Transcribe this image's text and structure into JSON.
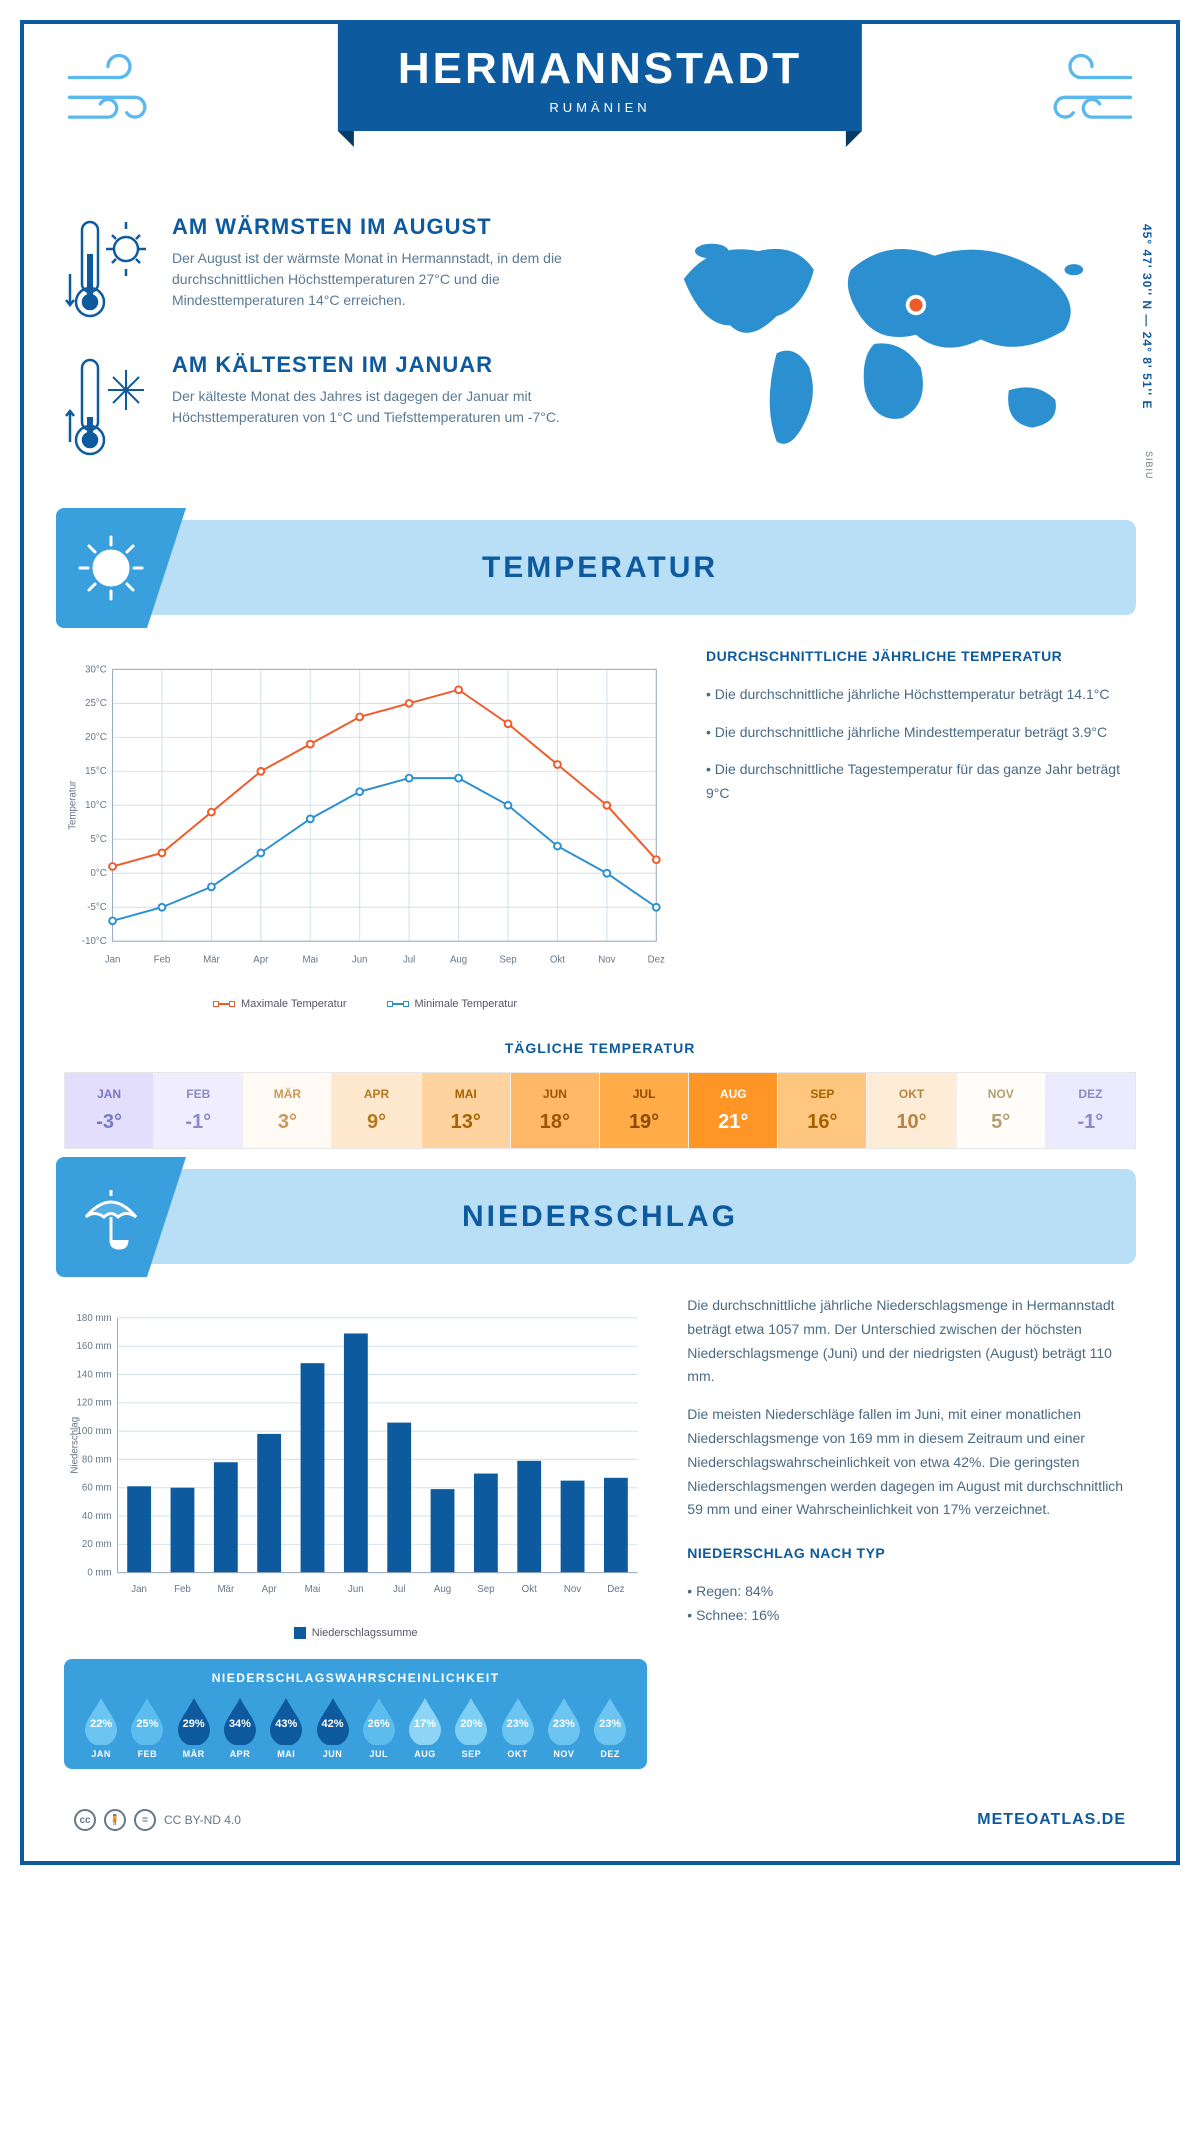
{
  "header": {
    "city": "HERMANNSTADT",
    "country": "RUMÄNIEN",
    "coords": "45° 47' 30'' N — 24° 8' 51'' E",
    "cityLatin": "SIBIU"
  },
  "facts": {
    "hot": {
      "title": "AM WÄRMSTEN IM AUGUST",
      "body": "Der August ist der wärmste Monat in Hermannstadt, in dem die durchschnittlichen Höchsttemperaturen 27°C und die Mindesttemperaturen 14°C erreichen."
    },
    "cold": {
      "title": "AM KÄLTESTEN IM JANUAR",
      "body": "Der kälteste Monat des Jahres ist dagegen der Januar mit Höchsttemperaturen von 1°C und Tiefsttemperaturen um -7°C."
    }
  },
  "sections": {
    "temperature": "TEMPERATUR",
    "precipitation": "NIEDERSCHLAG"
  },
  "tempChart": {
    "type": "line",
    "months": [
      "Jan",
      "Feb",
      "Mär",
      "Apr",
      "Mai",
      "Jun",
      "Jul",
      "Aug",
      "Sep",
      "Okt",
      "Nov",
      "Dez"
    ],
    "ylabel": "Temperatur",
    "ylim": [
      -10,
      30
    ],
    "ytick_step": 5,
    "ytick_suffix": "°C",
    "grid_color": "#cfe0ea",
    "background": "#ffffff",
    "series": {
      "max": {
        "label": "Maximale Temperatur",
        "color": "#f05a28",
        "values": [
          1,
          3,
          9,
          15,
          19,
          23,
          25,
          27,
          22,
          16,
          10,
          2
        ]
      },
      "min": {
        "label": "Minimale Temperatur",
        "color": "#2b8fd0",
        "values": [
          -7,
          -5,
          -2,
          3,
          8,
          12,
          14,
          14,
          10,
          4,
          0,
          -5
        ]
      }
    },
    "side": {
      "title": "DURCHSCHNITTLICHE JÄHRLICHE TEMPERATUR",
      "b1": "• Die durchschnittliche jährliche Höchsttemperatur beträgt 14.1°C",
      "b2": "• Die durchschnittliche jährliche Mindesttemperatur beträgt 3.9°C",
      "b3": "• Die durchschnittliche Tagestemperatur für das ganze Jahr beträgt 9°C"
    }
  },
  "dailyTemp": {
    "title": "TÄGLICHE TEMPERATUR",
    "months": [
      "JAN",
      "FEB",
      "MÄR",
      "APR",
      "MAI",
      "JUN",
      "JUL",
      "AUG",
      "SEP",
      "OKT",
      "NOV",
      "DEZ"
    ],
    "values": [
      "-3°",
      "-1°",
      "3°",
      "9°",
      "13°",
      "18°",
      "19°",
      "21°",
      "16°",
      "10°",
      "5°",
      "-1°"
    ],
    "bg": [
      "#e2defb",
      "#efedff",
      "#fffaf4",
      "#ffe9ce",
      "#ffd3a0",
      "#ffb966",
      "#ffab47",
      "#ff9524",
      "#ffc680",
      "#ffecd6",
      "#fffcfa",
      "#eceaff"
    ],
    "fg": [
      "#7a78c4",
      "#8c8ac4",
      "#c99a5a",
      "#b57820",
      "#a66200",
      "#9a5600",
      "#8d4a00",
      "#ffffff",
      "#a66200",
      "#b88342",
      "#b0a070",
      "#8c8ac4"
    ]
  },
  "precipChart": {
    "type": "bar",
    "months": [
      "Jan",
      "Feb",
      "Mär",
      "Apr",
      "Mai",
      "Jun",
      "Jul",
      "Aug",
      "Sep",
      "Okt",
      "Nov",
      "Dez"
    ],
    "values": [
      61,
      60,
      78,
      98,
      148,
      169,
      106,
      59,
      70,
      79,
      65,
      67
    ],
    "ylabel": "Niederschlag",
    "ylim": [
      0,
      180
    ],
    "ytick_step": 20,
    "ytick_suffix": " mm",
    "bar_color": "#0d5a9e",
    "grid_color": "#cfe0ea",
    "legend": "Niederschlagssumme"
  },
  "precipText": {
    "p1": "Die durchschnittliche jährliche Niederschlagsmenge in Hermannstadt beträgt etwa 1057 mm. Der Unterschied zwischen der höchsten Niederschlagsmenge (Juni) und der niedrigsten (August) beträgt 110 mm.",
    "p2": "Die meisten Niederschläge fallen im Juni, mit einer monatlichen Niederschlagsmenge von 169 mm in diesem Zeitraum und einer Niederschlagswahrscheinlichkeit von etwa 42%. Die geringsten Niederschlagsmengen werden dagegen im August mit durchschnittlich 59 mm und einer Wahrscheinlichkeit von 17% verzeichnet.",
    "typeTitle": "NIEDERSCHLAG NACH TYP",
    "rain": "• Regen: 84%",
    "snow": "• Schnee: 16%"
  },
  "precipProb": {
    "title": "NIEDERSCHLAGSWAHRSCHEINLICHKEIT",
    "months": [
      "JAN",
      "FEB",
      "MÄR",
      "APR",
      "MAI",
      "JUN",
      "JUL",
      "AUG",
      "SEP",
      "OKT",
      "NOV",
      "DEZ"
    ],
    "values": [
      "22%",
      "25%",
      "29%",
      "34%",
      "43%",
      "42%",
      "26%",
      "17%",
      "20%",
      "23%",
      "23%",
      "23%"
    ],
    "colors": [
      "#6cc5f0",
      "#5cbced",
      "#0d5a9e",
      "#0d5a9e",
      "#0d5a9e",
      "#0d5a9e",
      "#5cbced",
      "#8dd4f5",
      "#7ccef3",
      "#6cc5f0",
      "#6cc5f0",
      "#6cc5f0"
    ]
  },
  "footer": {
    "license": "CC BY-ND 4.0",
    "brand": "METEOATLAS.DE"
  }
}
